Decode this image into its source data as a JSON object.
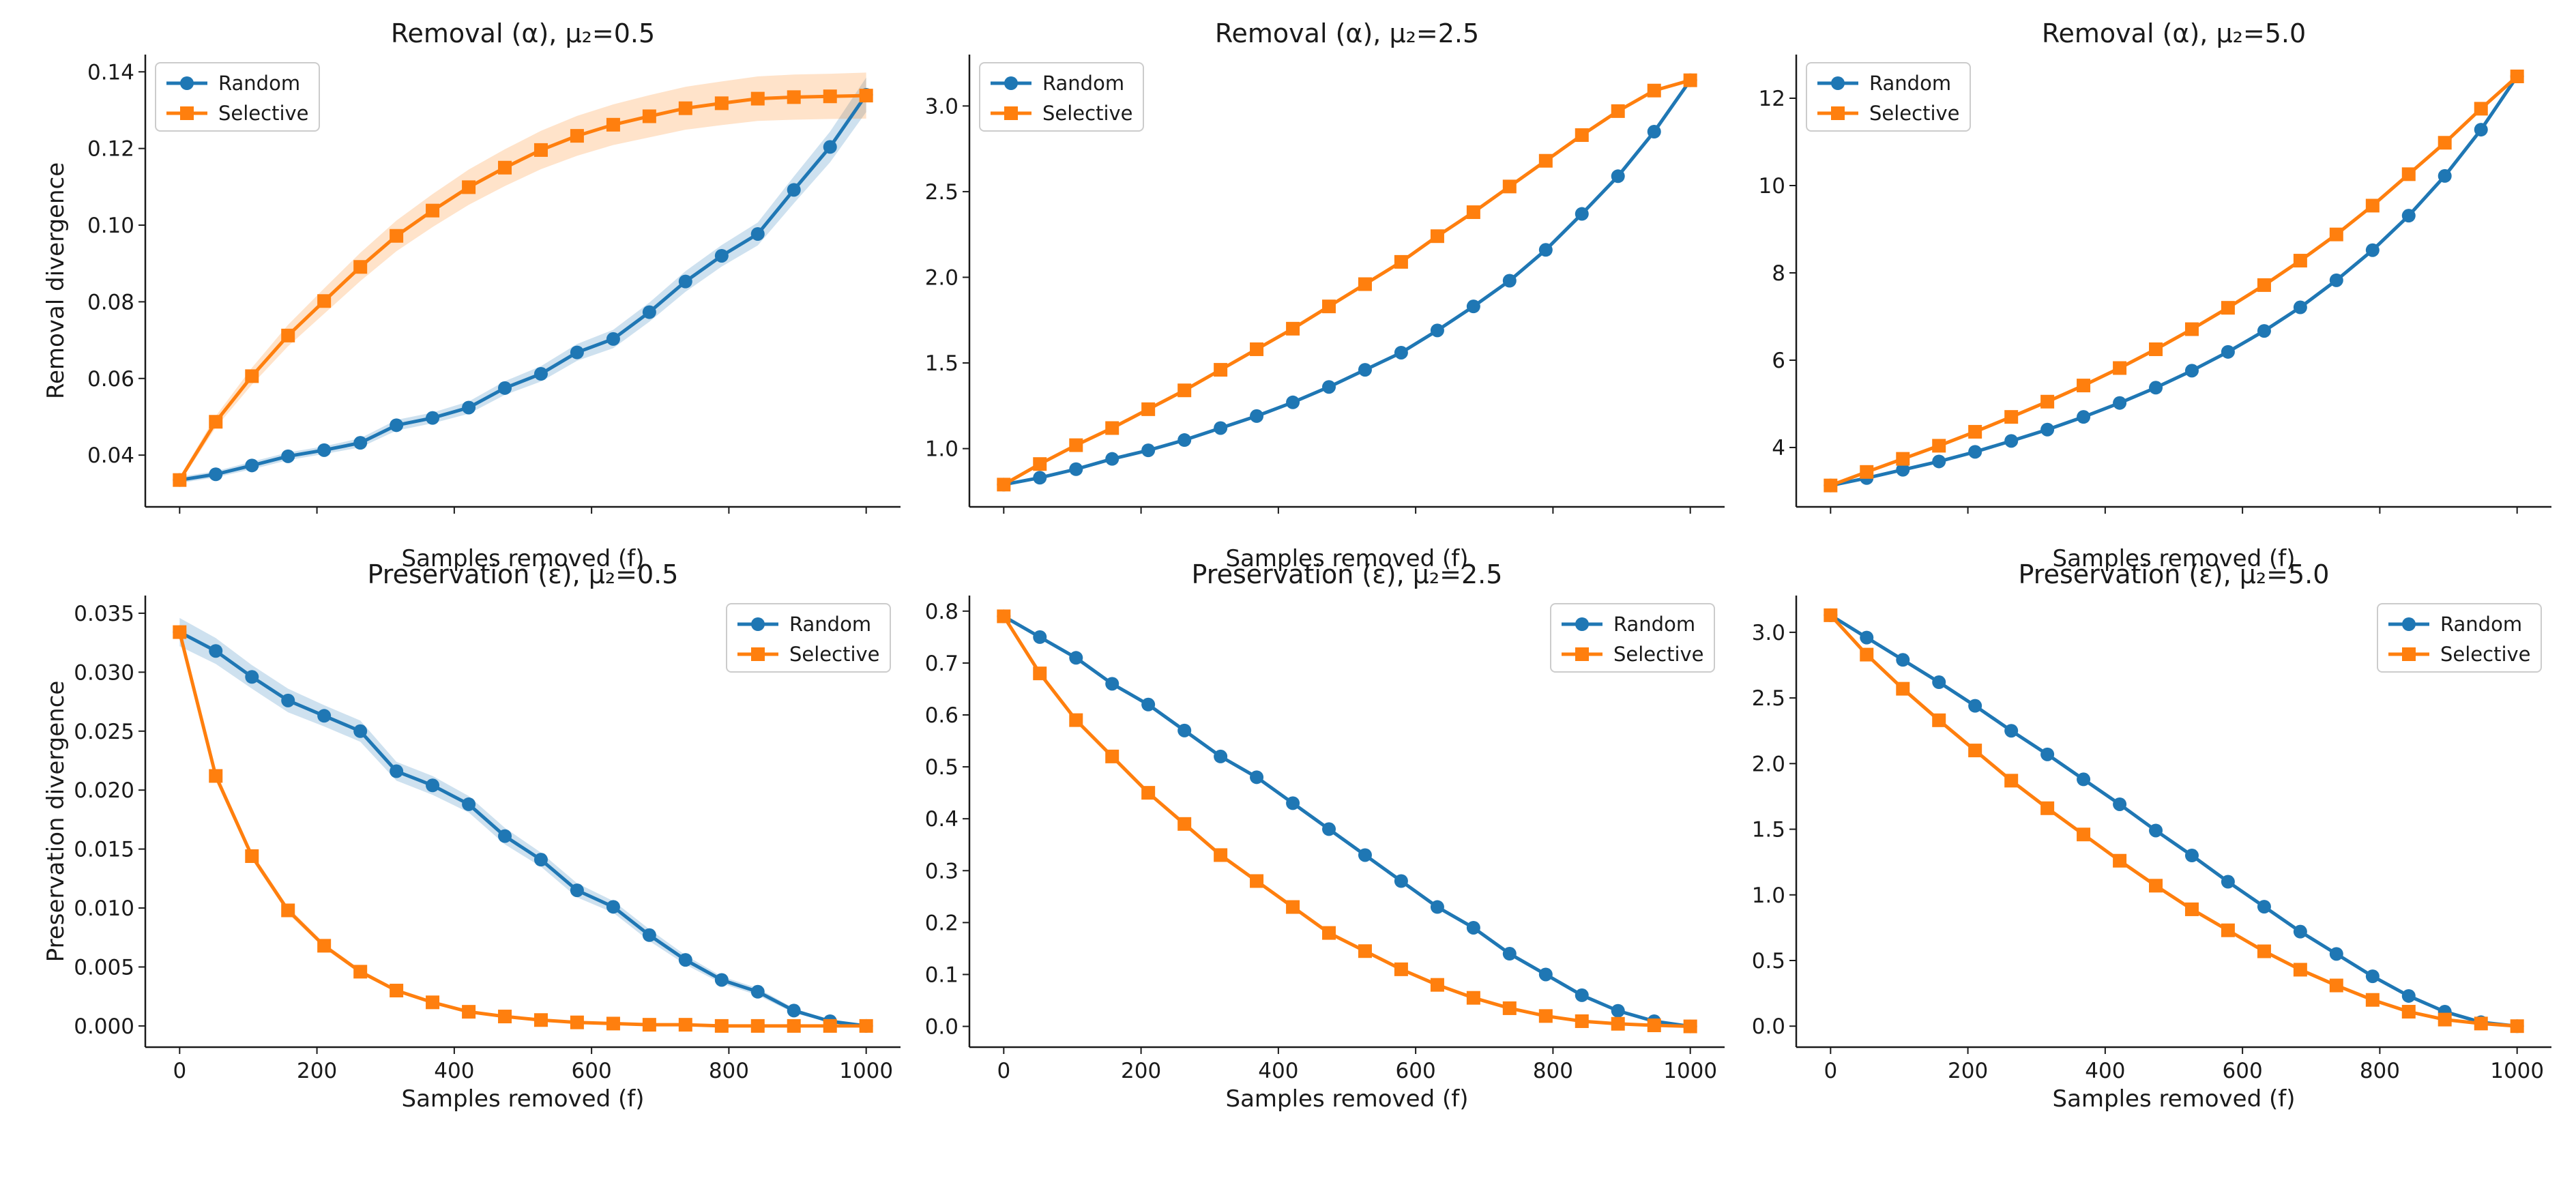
{
  "colors": {
    "random": "#1f77b4",
    "selective": "#ff7f0e",
    "random_band": "#1f77b4",
    "selective_band": "#ff7f0e"
  },
  "legend": {
    "random": "Random",
    "selective": "Selective"
  },
  "chart_data": [
    {
      "type": "line",
      "title": "Removal (α), μ₂=0.5",
      "xlabel": "Samples removed (f)",
      "ylabel": "Removal divergence",
      "x": [
        0,
        52.6,
        105.3,
        157.9,
        210.5,
        263.2,
        315.8,
        368.4,
        421.1,
        473.7,
        526.3,
        578.9,
        631.6,
        684.2,
        736.8,
        789.5,
        842.1,
        894.7,
        947.4,
        1000
      ],
      "xlim": [
        -50,
        1050
      ],
      "ylim": [
        0.0265,
        0.1445
      ],
      "xticks": [
        0,
        200,
        400,
        600,
        800,
        1000
      ],
      "xtick_labels_visible": false,
      "yticks": [
        0.04,
        0.06,
        0.08,
        0.1,
        0.12,
        0.14
      ],
      "ytick_labels": [
        "0.04",
        "0.06",
        "0.08",
        "0.10",
        "0.12",
        "0.14"
      ],
      "legend_position": "upper-left",
      "series": [
        {
          "name": "Random",
          "marker": "circle",
          "values": [
            0.0335,
            0.035,
            0.0373,
            0.0397,
            0.0413,
            0.0432,
            0.0478,
            0.0497,
            0.0524,
            0.0575,
            0.0612,
            0.0668,
            0.0703,
            0.0773,
            0.0853,
            0.092,
            0.0977,
            0.1092,
            0.1204,
            0.134
          ],
          "band": [
            0.0008,
            0.0008,
            0.001,
            0.001,
            0.001,
            0.0012,
            0.0014,
            0.0014,
            0.0016,
            0.0018,
            0.002,
            0.0022,
            0.0024,
            0.0025,
            0.0027,
            0.0028,
            0.003,
            0.0035,
            0.004,
            0.0045
          ]
        },
        {
          "name": "Selective",
          "marker": "square",
          "values": [
            0.0335,
            0.0487,
            0.0606,
            0.0712,
            0.0802,
            0.0891,
            0.0972,
            0.1038,
            0.1099,
            0.115,
            0.1196,
            0.1233,
            0.1262,
            0.1284,
            0.1305,
            0.1318,
            0.133,
            0.1334,
            0.1336,
            0.1338
          ],
          "band": [
            0.0008,
            0.0015,
            0.0022,
            0.0028,
            0.0033,
            0.0037,
            0.004,
            0.0043,
            0.0046,
            0.0048,
            0.005,
            0.0052,
            0.0053,
            0.0055,
            0.0056,
            0.0057,
            0.0058,
            0.0059,
            0.0059,
            0.006
          ]
        }
      ]
    },
    {
      "type": "line",
      "title": "Removal (α), μ₂=2.5",
      "xlabel": "Samples removed (f)",
      "ylabel": "",
      "x": [
        0,
        52.6,
        105.3,
        157.9,
        210.5,
        263.2,
        315.8,
        368.4,
        421.1,
        473.7,
        526.3,
        578.9,
        631.6,
        684.2,
        736.8,
        789.5,
        842.1,
        894.7,
        947.4,
        1000
      ],
      "xlim": [
        -50,
        1050
      ],
      "ylim": [
        0.66,
        3.3
      ],
      "xticks": [
        0,
        200,
        400,
        600,
        800,
        1000
      ],
      "xtick_labels_visible": false,
      "yticks": [
        1.0,
        1.5,
        2.0,
        2.5,
        3.0
      ],
      "ytick_labels": [
        "1.0",
        "1.5",
        "2.0",
        "2.5",
        "3.0"
      ],
      "legend_position": "upper-left",
      "series": [
        {
          "name": "Random",
          "marker": "circle",
          "values": [
            0.79,
            0.83,
            0.88,
            0.94,
            0.99,
            1.05,
            1.12,
            1.19,
            1.27,
            1.36,
            1.46,
            1.56,
            1.69,
            1.83,
            1.98,
            2.16,
            2.37,
            2.59,
            2.85,
            3.15
          ]
        },
        {
          "name": "Selective",
          "marker": "square",
          "values": [
            0.79,
            0.91,
            1.02,
            1.12,
            1.23,
            1.34,
            1.46,
            1.58,
            1.7,
            1.83,
            1.96,
            2.09,
            2.24,
            2.38,
            2.53,
            2.68,
            2.83,
            2.97,
            3.09,
            3.15
          ]
        }
      ]
    },
    {
      "type": "line",
      "title": "Removal (α), μ₂=5.0",
      "xlabel": "Samples removed (f)",
      "ylabel": "",
      "x": [
        0,
        52.6,
        105.3,
        157.9,
        210.5,
        263.2,
        315.8,
        368.4,
        421.1,
        473.7,
        526.3,
        578.9,
        631.6,
        684.2,
        736.8,
        789.5,
        842.1,
        894.7,
        947.4,
        1000
      ],
      "xlim": [
        -50,
        1050
      ],
      "ylim": [
        2.64,
        13.0
      ],
      "xticks": [
        0,
        200,
        400,
        600,
        800,
        1000
      ],
      "xtick_labels_visible": false,
      "yticks": [
        4,
        6,
        8,
        10,
        12
      ],
      "ytick_labels": [
        "4",
        "6",
        "8",
        "10",
        "12"
      ],
      "legend_position": "upper-left",
      "series": [
        {
          "name": "Random",
          "marker": "circle",
          "values": [
            3.13,
            3.3,
            3.49,
            3.68,
            3.9,
            4.15,
            4.41,
            4.7,
            5.02,
            5.37,
            5.76,
            6.19,
            6.67,
            7.21,
            7.83,
            8.52,
            9.31,
            10.22,
            11.28,
            12.5
          ]
        },
        {
          "name": "Selective",
          "marker": "square",
          "values": [
            3.13,
            3.44,
            3.74,
            4.04,
            4.36,
            4.7,
            5.05,
            5.42,
            5.82,
            6.25,
            6.71,
            7.2,
            7.72,
            8.28,
            8.88,
            9.54,
            10.26,
            10.98,
            11.76,
            12.5
          ]
        }
      ]
    },
    {
      "type": "line",
      "title": "Preservation (ε), μ₂=0.5",
      "xlabel": "Samples removed (f)",
      "ylabel": "Preservation divergence",
      "x": [
        0,
        52.6,
        105.3,
        157.9,
        210.5,
        263.2,
        315.8,
        368.4,
        421.1,
        473.7,
        526.3,
        578.9,
        631.6,
        684.2,
        736.8,
        789.5,
        842.1,
        894.7,
        947.4,
        1000
      ],
      "xlim": [
        -50,
        1050
      ],
      "ylim": [
        -0.0018,
        0.0365
      ],
      "xticks": [
        0,
        200,
        400,
        600,
        800,
        1000
      ],
      "xtick_labels_visible": true,
      "xtick_labels": [
        "0",
        "200",
        "400",
        "600",
        "800",
        "1000"
      ],
      "yticks": [
        0.0,
        0.005,
        0.01,
        0.015,
        0.02,
        0.025,
        0.03,
        0.035
      ],
      "ytick_labels": [
        "0.000",
        "0.005",
        "0.010",
        "0.015",
        "0.020",
        "0.025",
        "0.030",
        "0.035"
      ],
      "legend_position": "upper-right",
      "series": [
        {
          "name": "Random",
          "marker": "circle",
          "values": [
            0.0334,
            0.0318,
            0.0296,
            0.0276,
            0.0263,
            0.025,
            0.0216,
            0.0204,
            0.0188,
            0.0161,
            0.0141,
            0.0115,
            0.0101,
            0.0077,
            0.0056,
            0.0039,
            0.0029,
            0.0013,
            0.0004,
            0.0
          ],
          "band": [
            0.0012,
            0.0011,
            0.001,
            0.001,
            0.0009,
            0.0009,
            0.0008,
            0.0008,
            0.0007,
            0.0007,
            0.0006,
            0.0006,
            0.0005,
            0.0005,
            0.0004,
            0.0003,
            0.0003,
            0.0002,
            0.0001,
            0.0
          ]
        },
        {
          "name": "Selective",
          "marker": "square",
          "values": [
            0.0334,
            0.0212,
            0.0144,
            0.0098,
            0.0068,
            0.0046,
            0.003,
            0.002,
            0.0012,
            0.0008,
            0.0005,
            0.0003,
            0.0002,
            0.0001,
            0.0001,
            0.0,
            0.0,
            0.0,
            0.0,
            0.0
          ],
          "band": [
            0.0005,
            0.0004,
            0.0003,
            0.0003,
            0.0002,
            0.0002,
            0.0001,
            0.0001,
            0.0001,
            0.0001,
            0.0,
            0.0,
            0.0,
            0.0,
            0.0,
            0.0,
            0.0,
            0.0,
            0.0,
            0.0
          ]
        }
      ]
    },
    {
      "type": "line",
      "title": "Preservation (ε), μ₂=2.5",
      "xlabel": "Samples removed (f)",
      "ylabel": "",
      "x": [
        0,
        52.6,
        105.3,
        157.9,
        210.5,
        263.2,
        315.8,
        368.4,
        421.1,
        473.7,
        526.3,
        578.9,
        631.6,
        684.2,
        736.8,
        789.5,
        842.1,
        894.7,
        947.4,
        1000
      ],
      "xlim": [
        -50,
        1050
      ],
      "ylim": [
        -0.04,
        0.83
      ],
      "xticks": [
        0,
        200,
        400,
        600,
        800,
        1000
      ],
      "xtick_labels_visible": true,
      "xtick_labels": [
        "0",
        "200",
        "400",
        "600",
        "800",
        "1000"
      ],
      "yticks": [
        0.0,
        0.1,
        0.2,
        0.3,
        0.4,
        0.5,
        0.6,
        0.7,
        0.8
      ],
      "ytick_labels": [
        "0.0",
        "0.1",
        "0.2",
        "0.3",
        "0.4",
        "0.5",
        "0.6",
        "0.7",
        "0.8"
      ],
      "legend_position": "upper-right",
      "series": [
        {
          "name": "Random",
          "marker": "circle",
          "values": [
            0.79,
            0.75,
            0.71,
            0.66,
            0.62,
            0.57,
            0.52,
            0.48,
            0.43,
            0.38,
            0.33,
            0.28,
            0.23,
            0.19,
            0.14,
            0.1,
            0.06,
            0.03,
            0.01,
            0.0
          ]
        },
        {
          "name": "Selective",
          "marker": "square",
          "values": [
            0.79,
            0.68,
            0.59,
            0.52,
            0.45,
            0.39,
            0.33,
            0.28,
            0.23,
            0.18,
            0.145,
            0.11,
            0.08,
            0.055,
            0.035,
            0.02,
            0.01,
            0.005,
            0.002,
            0.0
          ]
        }
      ]
    },
    {
      "type": "line",
      "title": "Preservation (ε), μ₂=5.0",
      "xlabel": "Samples removed (f)",
      "ylabel": "",
      "x": [
        0,
        52.6,
        105.3,
        157.9,
        210.5,
        263.2,
        315.8,
        368.4,
        421.1,
        473.7,
        526.3,
        578.9,
        631.6,
        684.2,
        736.8,
        789.5,
        842.1,
        894.7,
        947.4,
        1000
      ],
      "xlim": [
        -50,
        1050
      ],
      "ylim": [
        -0.16,
        3.28
      ],
      "xticks": [
        0,
        200,
        400,
        600,
        800,
        1000
      ],
      "xtick_labels_visible": true,
      "xtick_labels": [
        "0",
        "200",
        "400",
        "600",
        "800",
        "1000"
      ],
      "yticks": [
        0.0,
        0.5,
        1.0,
        1.5,
        2.0,
        2.5,
        3.0
      ],
      "ytick_labels": [
        "0.0",
        "0.5",
        "1.0",
        "1.5",
        "2.0",
        "2.5",
        "3.0"
      ],
      "legend_position": "upper-right",
      "series": [
        {
          "name": "Random",
          "marker": "circle",
          "values": [
            3.13,
            2.96,
            2.79,
            2.62,
            2.44,
            2.25,
            2.07,
            1.88,
            1.69,
            1.49,
            1.3,
            1.1,
            0.91,
            0.72,
            0.55,
            0.38,
            0.23,
            0.11,
            0.03,
            0.0
          ]
        },
        {
          "name": "Selective",
          "marker": "square",
          "values": [
            3.13,
            2.83,
            2.57,
            2.33,
            2.1,
            1.87,
            1.66,
            1.46,
            1.26,
            1.07,
            0.89,
            0.73,
            0.57,
            0.43,
            0.31,
            0.2,
            0.11,
            0.05,
            0.02,
            0.0
          ]
        }
      ]
    }
  ]
}
